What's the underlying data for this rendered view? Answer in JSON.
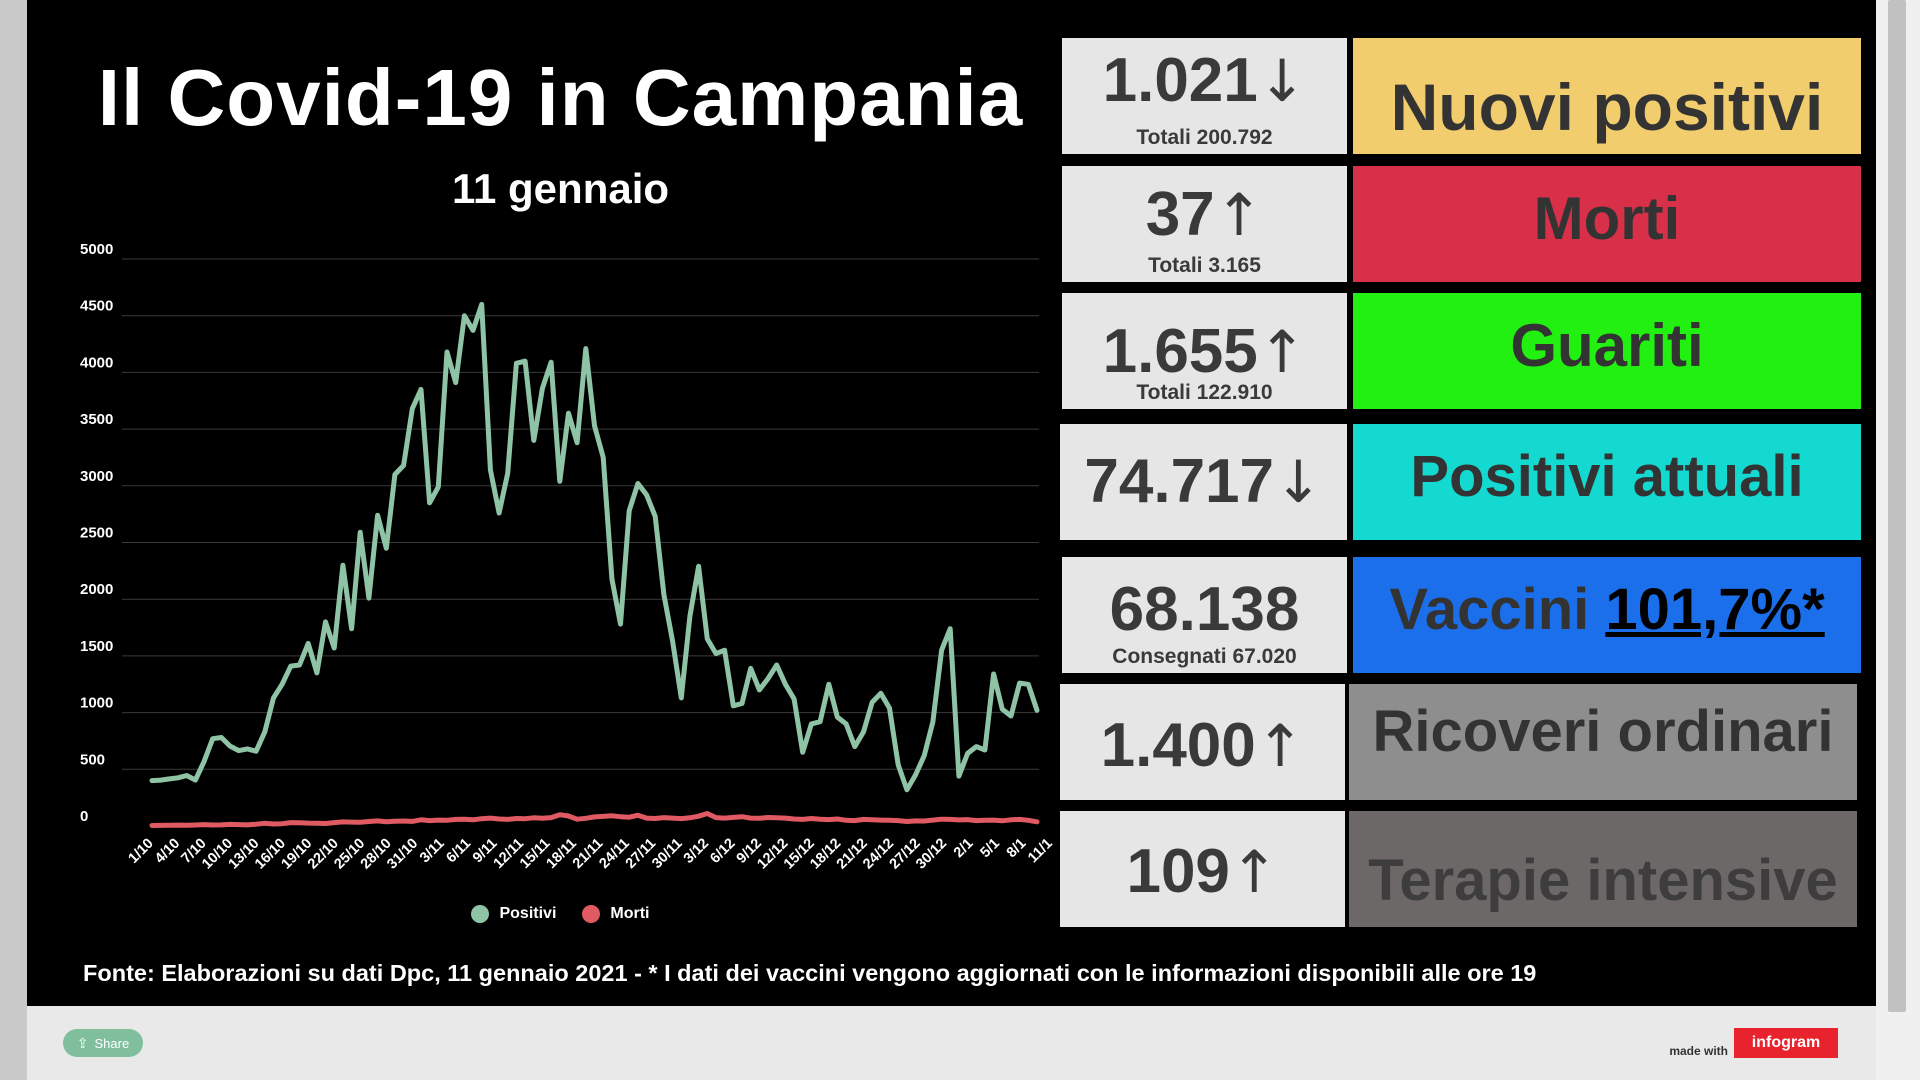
{
  "title": "Il Covid-19 in Campania",
  "subtitle": "11 gennaio",
  "source": "Fonte: Elaborazioni su dati Dpc, 11 gennaio 2021 - * I dati dei vaccini vengono aggiornati con le informazioni disponibili alle ore 19",
  "stats": [
    {
      "value": "1.021",
      "arrow": "↓",
      "sub": "Totali 200.792",
      "label": "Nuovi positivi",
      "color": "#f1cd6e",
      "text_color": "#333333"
    },
    {
      "value": "37",
      "arrow": "↑",
      "sub": "Totali 3.165",
      "label": "Morti",
      "color": "#d9304a",
      "text_color": "#333333"
    },
    {
      "value": "1.655",
      "arrow": "↑",
      "sub": "Totali 122.910",
      "label": "Guariti",
      "color": "#22f010",
      "text_color": "#333333"
    },
    {
      "value": "74.717",
      "arrow": "↓",
      "sub": "",
      "label": "Positivi attuali",
      "color": "#13d9d1",
      "text_color": "#333333"
    },
    {
      "value": "68.138",
      "arrow": "",
      "sub": "Consegnati 67.020",
      "label": "Vaccini",
      "label_extra": "101,7%*",
      "color": "#1c6fea",
      "text_color": "#333333",
      "extra_color": "#000000"
    },
    {
      "value": "1.400",
      "arrow": "↑",
      "sub": "",
      "label": "Ricoveri ordinari",
      "color": "#8e8e8e",
      "text_color": "#333333"
    },
    {
      "value": "109",
      "arrow": "↑",
      "sub": "",
      "label": "Terapie intensive",
      "color": "#6d6868",
      "text_color": "#3d3d3d"
    }
  ],
  "footer": {
    "share_label": "Share",
    "share_icon": "share-icon",
    "made_with": "made with",
    "brand": "infogram"
  },
  "chart_data": {
    "type": "line",
    "ylim": [
      0,
      5000
    ],
    "yticks": [
      0,
      500,
      1000,
      1500,
      2000,
      2500,
      3000,
      3500,
      4000,
      4500,
      5000
    ],
    "grid": true,
    "legend_position": "bottom-center",
    "x_tick_labels": [
      "1/10",
      "4/10",
      "7/10",
      "10/10",
      "13/10",
      "16/10",
      "19/10",
      "22/10",
      "25/10",
      "28/10",
      "31/10",
      "3/11",
      "6/11",
      "9/11",
      "12/11",
      "15/11",
      "18/11",
      "21/11",
      "24/11",
      "27/11",
      "30/11",
      "3/12",
      "6/12",
      "9/12",
      "12/12",
      "15/12",
      "18/12",
      "21/12",
      "24/12",
      "27/12",
      "30/12",
      "2/1",
      "5/1",
      "8/1",
      "11/1"
    ],
    "series": [
      {
        "name": "Positivi",
        "color": "#8fc3a5",
        "values": [
          400,
          405,
          415,
          425,
          445,
          405,
          570,
          770,
          780,
          705,
          665,
          680,
          660,
          830,
          1130,
          1250,
          1410,
          1420,
          1610,
          1350,
          1800,
          1570,
          2300,
          1740,
          2590,
          2010,
          2740,
          2450,
          3100,
          3180,
          3680,
          3850,
          2850,
          2990,
          4180,
          3910,
          4500,
          4370,
          4600,
          3140,
          2760,
          3110,
          4080,
          4100,
          3400,
          3860,
          4090,
          3040,
          3640,
          3380,
          4210,
          3530,
          3250,
          2180,
          1780,
          2780,
          3020,
          2920,
          2730,
          2040,
          1630,
          1130,
          1850,
          2290,
          1650,
          1520,
          1550,
          1060,
          1080,
          1390,
          1200,
          1300,
          1420,
          1250,
          1120,
          650,
          900,
          920,
          1250,
          960,
          900,
          700,
          830,
          1090,
          1170,
          1040,
          540,
          320,
          450,
          620,
          920,
          1550,
          1740,
          440,
          640,
          700,
          670,
          1340,
          1030,
          970,
          1260,
          1250,
          1020
        ]
      },
      {
        "name": "Morti",
        "color": "#e05a63",
        "values": [
          4,
          5,
          6,
          8,
          6,
          9,
          12,
          9,
          10,
          14,
          12,
          10,
          16,
          24,
          18,
          20,
          30,
          28,
          26,
          25,
          22,
          30,
          36,
          34,
          33,
          40,
          45,
          38,
          42,
          44,
          41,
          55,
          48,
          52,
          50,
          58,
          60,
          55,
          64,
          70,
          62,
          58,
          66,
          64,
          72,
          68,
          74,
          100,
          88,
          60,
          68,
          80,
          85,
          90,
          82,
          78,
          95,
          70,
          66,
          74,
          70,
          65,
          72,
          86,
          110,
          74,
          70,
          76,
          82,
          70,
          68,
          75,
          72,
          70,
          62,
          58,
          66,
          60,
          56,
          62,
          50,
          48,
          58,
          55,
          52,
          50,
          48,
          40,
          45,
          44,
          52,
          60,
          58,
          54,
          56,
          48,
          50,
          52,
          46,
          55,
          58,
          50,
          37
        ]
      }
    ]
  }
}
